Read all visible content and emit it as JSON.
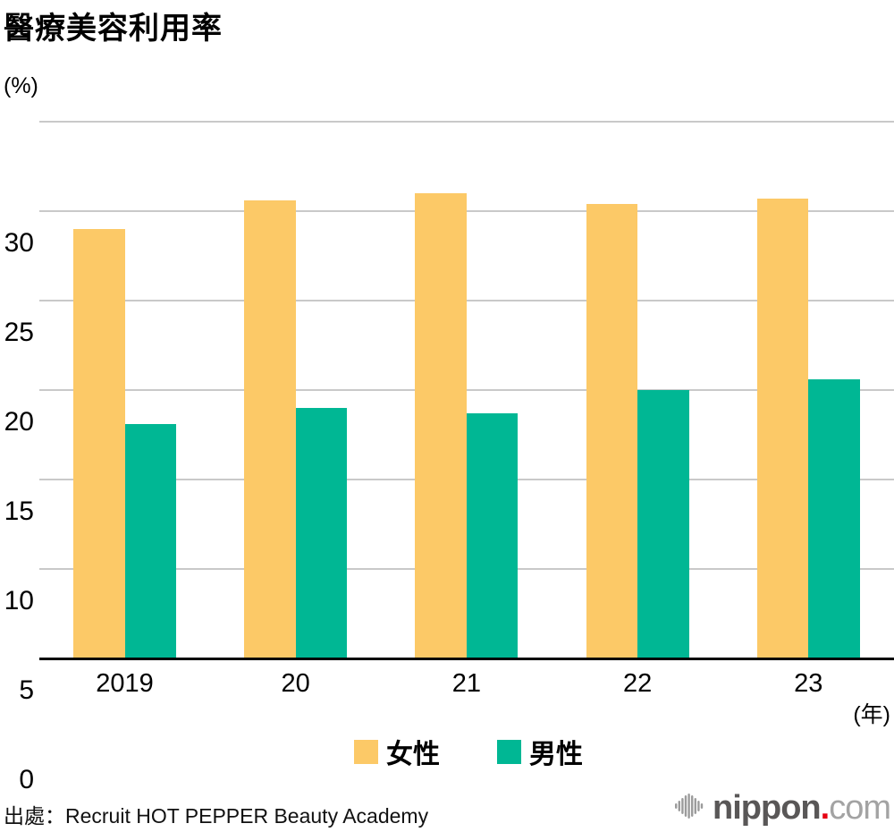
{
  "title": "醫療美容利用率",
  "chart_data": {
    "type": "bar",
    "title": "醫療美容利用率",
    "y_unit_label": "(%)",
    "x_unit_label": "(年)",
    "categories": [
      "2019",
      "20",
      "21",
      "22",
      "23"
    ],
    "series": [
      {
        "name": "女性",
        "color": "#fcc967",
        "values": [
          24.0,
          25.6,
          26.0,
          25.4,
          25.7
        ]
      },
      {
        "name": "男性",
        "color": "#00b794",
        "values": [
          13.1,
          14.0,
          13.7,
          15.0,
          15.6
        ]
      }
    ],
    "ylim": [
      0,
      30
    ],
    "yticks": [
      0,
      5,
      10,
      15,
      20,
      25,
      30
    ],
    "grid": true,
    "legend_position": "bottom",
    "gridline_color": "#c9c9c9",
    "axis_color": "#000000"
  },
  "source": "出處：Recruit HOT PEPPER Beauty Academy",
  "logo": {
    "brand": "nippon",
    "dot": ".",
    "tld": "com"
  }
}
